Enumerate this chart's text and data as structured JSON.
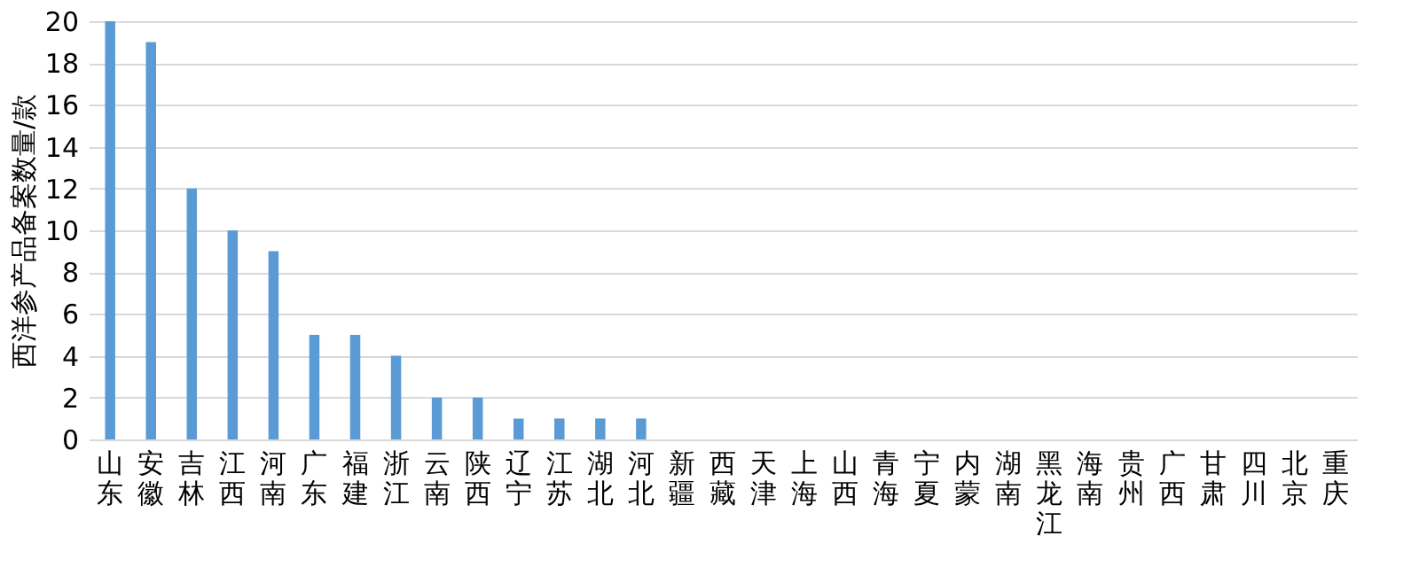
{
  "chart_data": {
    "type": "bar",
    "ylabel": "西洋参产品备案数量/款",
    "categories": [
      "山东",
      "安徽",
      "吉林",
      "江西",
      "河南",
      "广东",
      "福建",
      "浙江",
      "云南",
      "陕西",
      "辽宁",
      "江苏",
      "湖北",
      "河北",
      "新疆",
      "西藏",
      "天津",
      "上海",
      "山西",
      "青海",
      "宁夏",
      "内蒙",
      "湖南",
      "黑龙江",
      "海南",
      "贵州",
      "广西",
      "甘肃",
      "四川",
      "北京",
      "重庆"
    ],
    "values": [
      20,
      19,
      12,
      10,
      9,
      5,
      5,
      4,
      2,
      2,
      1,
      1,
      1,
      1,
      0,
      0,
      0,
      0,
      0,
      0,
      0,
      0,
      0,
      0,
      0,
      0,
      0,
      0,
      0,
      0,
      0
    ],
    "color": "#5b9bd5",
    "ylim": [
      0,
      20
    ],
    "yticks": [
      0,
      2,
      4,
      6,
      8,
      10,
      12,
      14,
      16,
      18,
      20
    ],
    "grid": "y"
  }
}
